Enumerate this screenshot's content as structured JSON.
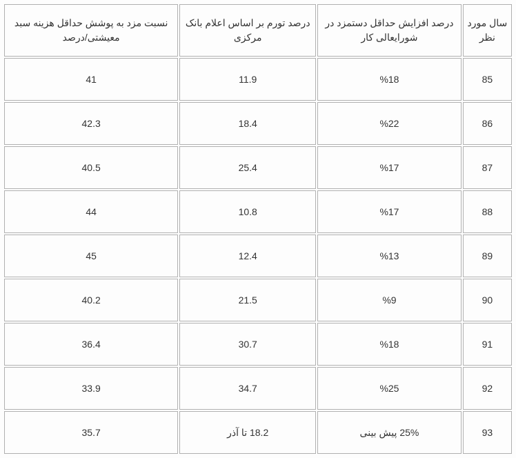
{
  "table": {
    "type": "table",
    "headers": [
      "سال مورد نظر",
      "درصد افزایش حداقل دستمزد در شورایعالی کار",
      "درصد تورم بر اساس اعلام بانک مرکزی",
      "نسبت مزد به پوشش حداقل هزینه سبد معیشتی/درصد"
    ],
    "rows": [
      {
        "year": "85",
        "wage": "%18",
        "inflation": "11.9",
        "ratio": "41"
      },
      {
        "year": "86",
        "wage": "%22",
        "inflation": "18.4",
        "ratio": "42.3"
      },
      {
        "year": "87",
        "wage": "%17",
        "inflation": "25.4",
        "ratio": "40.5"
      },
      {
        "year": "88",
        "wage": "%17",
        "inflation": "10.8",
        "ratio": "44"
      },
      {
        "year": "89",
        "wage": "%13",
        "inflation": "12.4",
        "ratio": "45"
      },
      {
        "year": "90",
        "wage": "%9",
        "inflation": "21.5",
        "ratio": "40.2"
      },
      {
        "year": "91",
        "wage": "%18",
        "inflation": "30.7",
        "ratio": "36.4"
      },
      {
        "year": "92",
        "wage": "%25",
        "inflation": "34.7",
        "ratio": "33.9"
      },
      {
        "year": "93",
        "wage": "25% پیش بینی",
        "inflation": "18.2 تا آذر",
        "ratio": "35.7"
      }
    ],
    "border_color": "#b0b0b0",
    "background_color": "#fdfdfd",
    "text_color": "#333333",
    "header_fontsize": 14,
    "cell_fontsize": 14
  }
}
